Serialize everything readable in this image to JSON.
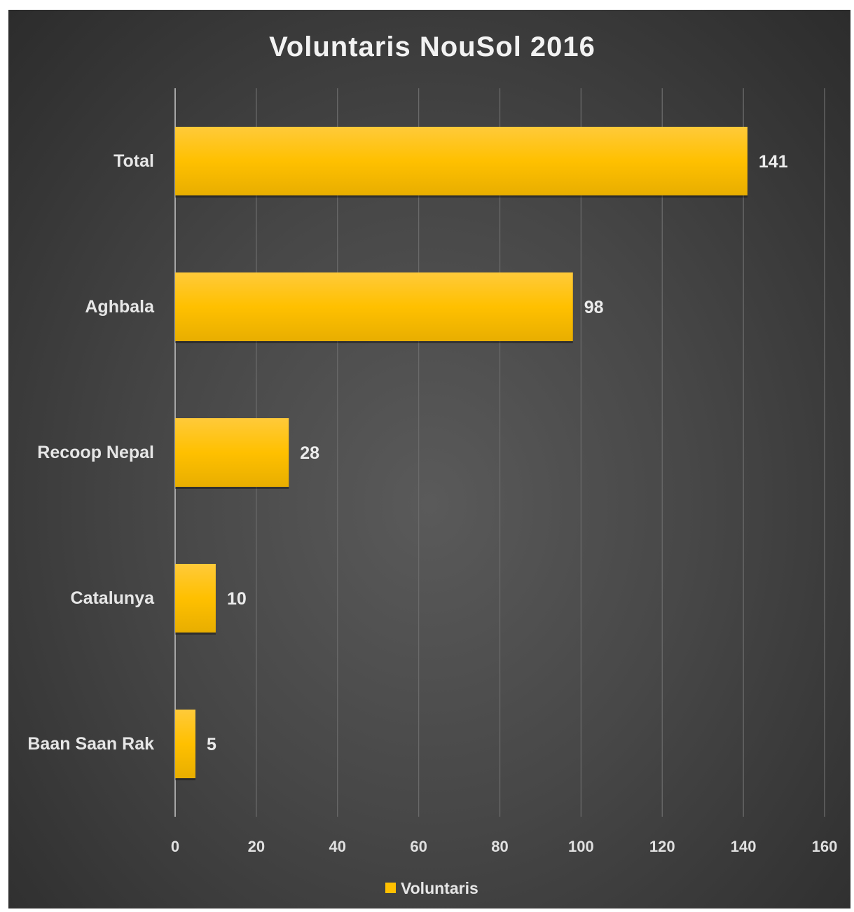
{
  "chart_data": {
    "type": "bar",
    "orientation": "horizontal",
    "title": "Voluntaris NouSol 2016",
    "categories": [
      "Total",
      "Aghbala",
      "Recoop Nepal",
      "Catalunya",
      "Baan Saan Rak"
    ],
    "series": [
      {
        "name": "Voluntaris",
        "values": [
          141,
          98,
          28,
          10,
          5
        ],
        "color": "#ffc000"
      }
    ],
    "xlim": [
      0,
      160
    ],
    "xticks": [
      0,
      20,
      40,
      60,
      80,
      100,
      120,
      140,
      160
    ],
    "grid": true,
    "legend": "bottom",
    "colors": {
      "bar_top": "#ffca3a",
      "bar_mid": "#ffc000",
      "bar_bottom": "#e8ae00",
      "gridline": "#6a6a6a",
      "axis": "#a6a6a6"
    }
  }
}
